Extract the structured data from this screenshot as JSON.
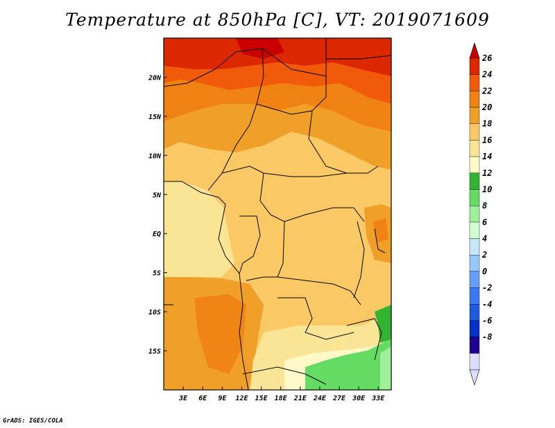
{
  "title": "Temperature at 850hPa [C], VT: 2019071609",
  "credit": "GrADS: IGES/COLA",
  "map": {
    "lat_range": [
      -20,
      25
    ],
    "lon_range": [
      0,
      35
    ],
    "lat_ticks": [
      {
        "value": 20,
        "label": "20N"
      },
      {
        "value": 15,
        "label": "15N"
      },
      {
        "value": 10,
        "label": "10N"
      },
      {
        "value": 5,
        "label": "5N"
      },
      {
        "value": 0,
        "label": "EQ"
      },
      {
        "value": -5,
        "label": "5S"
      },
      {
        "value": -10,
        "label": "10S"
      },
      {
        "value": -15,
        "label": "15S"
      }
    ],
    "lon_ticks": [
      {
        "value": 3,
        "label": "3E"
      },
      {
        "value": 6,
        "label": "6E"
      },
      {
        "value": 9,
        "label": "9E"
      },
      {
        "value": 12,
        "label": "12E"
      },
      {
        "value": 15,
        "label": "15E"
      },
      {
        "value": 18,
        "label": "18E"
      },
      {
        "value": 21,
        "label": "21E"
      },
      {
        "value": 24,
        "label": "24E"
      },
      {
        "value": 27,
        "label": "27E"
      },
      {
        "value": 30,
        "label": "30E"
      },
      {
        "value": 33,
        "label": "33E"
      }
    ]
  },
  "colorbar": {
    "labels": [
      "26",
      "24",
      "22",
      "20",
      "18",
      "16",
      "14",
      "12",
      "10",
      "8",
      "6",
      "4",
      "2",
      "0",
      "-2",
      "-4",
      "-6",
      "-8"
    ],
    "colors": [
      "#ffffff",
      "#dcdcfc",
      "#1e0090",
      "#0032c8",
      "#1e5adc",
      "#3c78f0",
      "#64a0f8",
      "#96c8fc",
      "#c8e6fc",
      "#d2fcd2",
      "#a0f09a",
      "#64dc64",
      "#32b432",
      "#fffac8",
      "#fae496",
      "#fac864",
      "#f0a028",
      "#f08214",
      "#f05a0a",
      "#dc2800",
      "#c80000"
    ]
  }
}
